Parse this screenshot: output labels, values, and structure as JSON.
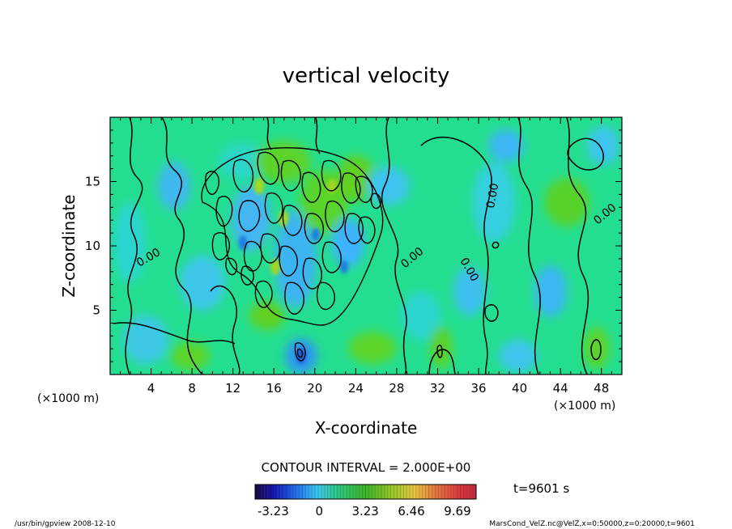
{
  "chart_data": {
    "type": "heatmap",
    "title": "vertical velocity",
    "xlabel": "X-coordinate",
    "ylabel": "Z-coordinate",
    "x_unit": "(×1000 m)",
    "y_unit": "(×1000 m)",
    "xlim": [
      0,
      50
    ],
    "ylim": [
      0,
      20
    ],
    "x_ticks": [
      "4",
      "8",
      "12",
      "16",
      "20",
      "24",
      "28",
      "32",
      "36",
      "40",
      "44",
      "48"
    ],
    "y_ticks": [
      "5",
      "10",
      "15"
    ],
    "x_tick_values": [
      4,
      8,
      12,
      16,
      20,
      24,
      28,
      32,
      36,
      40,
      44,
      48
    ],
    "y_tick_values": [
      5,
      10,
      15
    ],
    "contour_interval_text": "CONTOUR INTERVAL = 2.000E+00",
    "contour_interval": 2.0,
    "contour_labels": [
      "0.00",
      "0.00",
      "0.00",
      "0.00",
      "0.00"
    ],
    "colorbar": {
      "ticks": [
        "-3.23",
        "0",
        "3.23",
        "6.46",
        "9.69"
      ],
      "tick_values": [
        -3.23,
        0,
        3.23,
        6.46,
        9.69
      ],
      "range": [
        -4.5,
        11.0
      ]
    },
    "time_label": "t=9601 s",
    "footer_left": "/usr/bin/gpview   2008-12-10",
    "footer_right": "MarsCond_VelZ.nc@VelZ,x=0:50000,z=0:20000,t=9601",
    "colors": {
      "background_field": "#22e08c",
      "positive": "#5fd21e",
      "negative": "#3fb0ff",
      "contour": "#000000"
    }
  }
}
